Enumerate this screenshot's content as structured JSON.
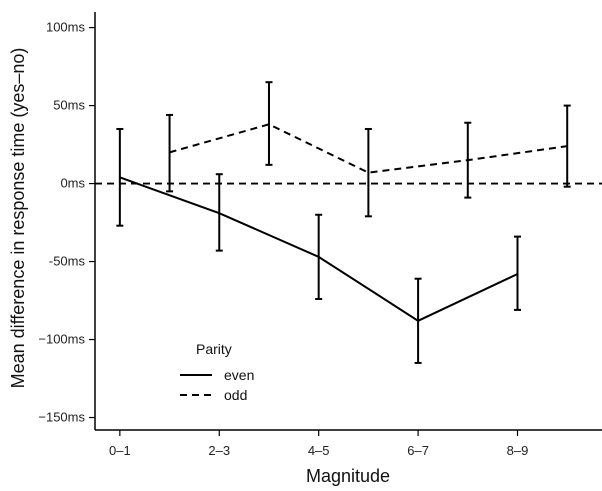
{
  "chart_data": {
    "type": "line",
    "title": "",
    "xlabel": "Magnitude",
    "ylabel": "Mean difference in response time (yes–no)",
    "x_tick_labels": [
      "0–1",
      "2–3",
      "4–5",
      "6–7",
      "8–9"
    ],
    "y_ticks": [
      100,
      50,
      0,
      -50,
      -100,
      -150
    ],
    "y_tick_labels": [
      "100ms",
      "50ms",
      "0ms",
      "-50ms",
      "−100ms",
      "−150ms"
    ],
    "ylim": [
      -158,
      110
    ],
    "xlim": [
      -0.25,
      4.85
    ],
    "grid": false,
    "legend_title": "Parity",
    "legend_position": "bottom-left",
    "reference_line": {
      "y": 0,
      "style": "dashed"
    },
    "series": [
      {
        "name": "even",
        "style": "solid",
        "x": [
          0,
          1,
          2,
          3,
          4
        ],
        "y": [
          4,
          -19,
          -47,
          -88,
          -58
        ],
        "err_low": [
          -27,
          -43,
          -74,
          -115,
          -81
        ],
        "err_high": [
          35,
          6,
          -20,
          -61,
          -34
        ]
      },
      {
        "name": "odd",
        "style": "dashed",
        "x": [
          0.5,
          1.5,
          2.5,
          3.5,
          4.5
        ],
        "y": [
          20,
          38,
          7,
          15,
          24
        ],
        "err_low": [
          -5,
          12,
          -21,
          -9,
          -2
        ],
        "err_high": [
          44,
          65,
          35,
          39,
          50
        ]
      }
    ]
  }
}
